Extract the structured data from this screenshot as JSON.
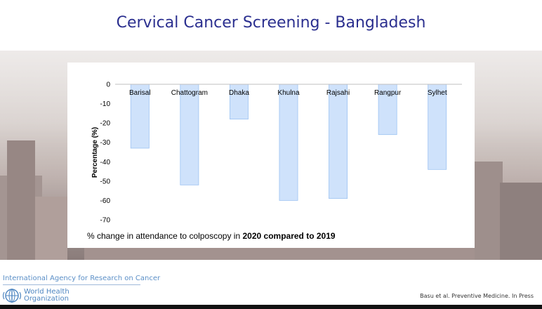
{
  "slide": {
    "title": "Cervical Cancer Screening - Bangladesh"
  },
  "caption": {
    "prefix": "% change in attendance to colposcopy in ",
    "bold": "2020 compared to 2019"
  },
  "footer": {
    "iarc": "International Agency for Research on Cancer",
    "who_line1": "World Health",
    "who_line2": "Organization",
    "citation": "Basu et al. Preventive Medicine. In Press"
  },
  "colors": {
    "title": "#2b2f8f",
    "bar_fill": "#cfe2fb",
    "bar_stroke": "#9dc3f2"
  },
  "chart_data": {
    "type": "bar",
    "categories": [
      "Barisal",
      "Chattogram",
      "Dhaka",
      "Khulna",
      "Rajsahi",
      "Rangpur",
      "Sylhet"
    ],
    "values": [
      -33,
      -52,
      -18,
      -60,
      -59,
      -26,
      -44
    ],
    "ylabel": "Percentage (%)",
    "ylim": [
      -70,
      0
    ],
    "yticks": [
      0,
      -10,
      -20,
      -30,
      -40,
      -50,
      -60,
      -70
    ],
    "xaxis_labels_position": "top",
    "grid": false,
    "legend": "none"
  }
}
